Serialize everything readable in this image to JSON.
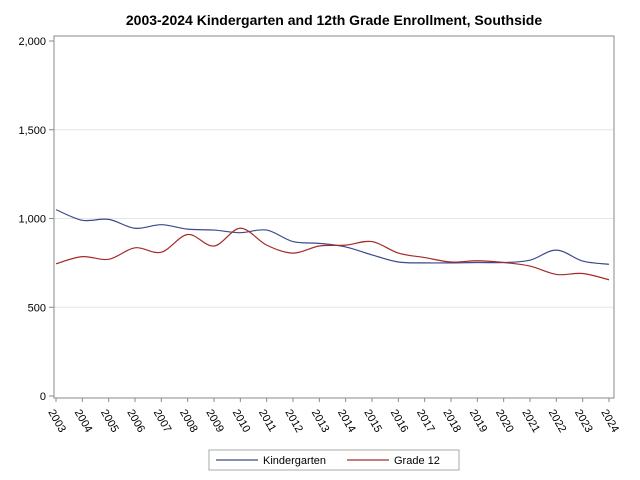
{
  "chart_data": {
    "type": "line",
    "title": "2003-2024 Kindergarten and 12th Grade Enrollment, Southside",
    "xlabel": "",
    "ylabel": "",
    "x": [
      "2003",
      "2004",
      "2005",
      "2006",
      "2007",
      "2008",
      "2009",
      "2010",
      "2011",
      "2012",
      "2013",
      "2014",
      "2015",
      "2016",
      "2017",
      "2018",
      "2019",
      "2020",
      "2021",
      "2022",
      "2023",
      "2024"
    ],
    "ylim": [
      0,
      2000
    ],
    "yticks": [
      0,
      500,
      1000,
      1500,
      2000
    ],
    "ytick_labels": [
      "0",
      "500",
      "1,000",
      "1,500",
      "2,000"
    ],
    "grid": "horizontal",
    "legend": "bottom",
    "series": [
      {
        "name": "Kindergarten",
        "color": "#3a4a8c",
        "values": [
          1050,
          990,
          995,
          945,
          965,
          940,
          935,
          920,
          935,
          870,
          860,
          840,
          795,
          755,
          750,
          750,
          752,
          752,
          765,
          822,
          760,
          742
        ]
      },
      {
        "name": "Grade 12",
        "color": "#a52a2a",
        "values": [
          745,
          785,
          770,
          835,
          810,
          910,
          845,
          945,
          850,
          805,
          845,
          850,
          870,
          805,
          780,
          755,
          762,
          752,
          732,
          685,
          690,
          655
        ]
      }
    ]
  }
}
